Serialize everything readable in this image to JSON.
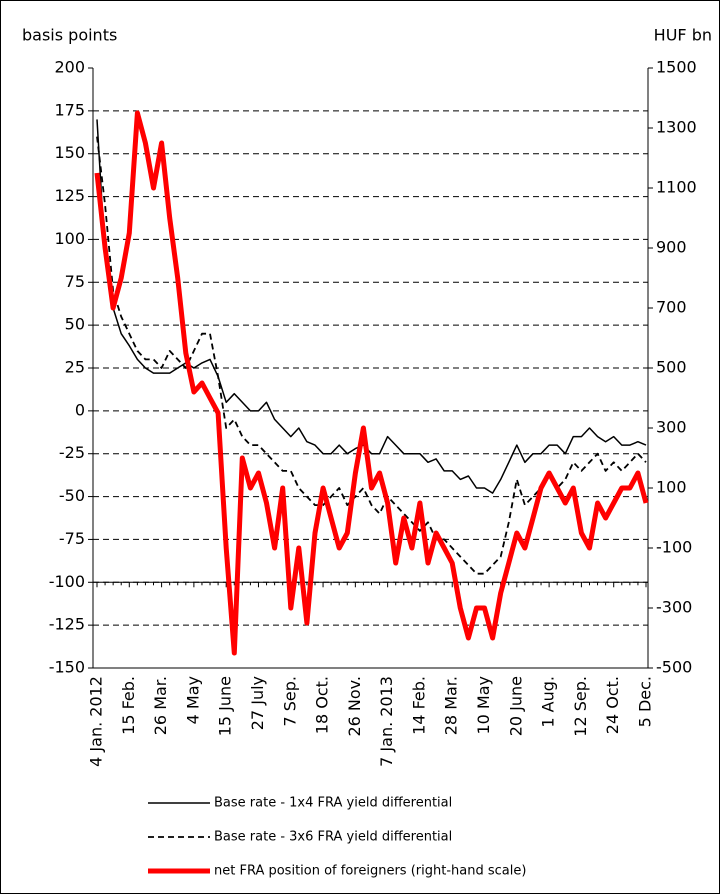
{
  "chart_data": {
    "type": "line",
    "ylabel": "basis points",
    "y2label": "HUF bn",
    "categories": [
      "4 Jan. 2012",
      null,
      null,
      null,
      "15 Feb.",
      null,
      null,
      null,
      "26 Mar.",
      null,
      null,
      null,
      "4 May",
      null,
      null,
      null,
      "15 June",
      null,
      null,
      null,
      "27 July",
      null,
      null,
      null,
      "7 Sep.",
      null,
      null,
      null,
      "18 Oct.",
      null,
      null,
      null,
      "26 Nov.",
      null,
      null,
      null,
      "7 Jan. 2013",
      null,
      null,
      null,
      "14 Feb.",
      null,
      null,
      null,
      "28 Mar.",
      null,
      null,
      null,
      "10 May",
      null,
      null,
      null,
      "20 June",
      null,
      null,
      null,
      "1 Aug.",
      null,
      null,
      null,
      "12 Sep.",
      null,
      null,
      null,
      "24 Oct.",
      null,
      null,
      null,
      "5 Dec."
    ],
    "ylim": [
      -150,
      200
    ],
    "yticks": [
      -150,
      -125,
      -100,
      -75,
      -50,
      -25,
      0,
      25,
      50,
      75,
      100,
      125,
      150,
      175,
      200
    ],
    "y2lim": [
      -500,
      1500
    ],
    "y2ticks": [
      -500,
      -300,
      -100,
      100,
      300,
      500,
      700,
      900,
      1100,
      1300,
      1500
    ],
    "grid": true,
    "x_axis_at": -100,
    "series": [
      {
        "name": "Base rate - 1x4 FRA yield differential",
        "color": "#000000",
        "linestyle": "solid",
        "values": [
          170,
          90,
          60,
          45,
          38,
          30,
          25,
          22,
          22,
          22,
          25,
          28,
          25,
          28,
          30,
          20,
          5,
          10,
          5,
          0,
          0,
          5,
          -5,
          -10,
          -15,
          -10,
          -18,
          -20,
          -25,
          -25,
          -20,
          -25,
          -22,
          -20,
          -25,
          -25,
          -15,
          -20,
          -25,
          -25,
          -25,
          -30,
          -28,
          -35,
          -35,
          -40,
          -38,
          -45,
          -45,
          -48,
          -40,
          -30,
          -20,
          -30,
          -25,
          -25,
          -20,
          -20,
          -25,
          -15,
          -15,
          -10,
          -15,
          -18,
          -15,
          -20,
          -20,
          -18,
          -20
        ]
      },
      {
        "name": "Base rate - 3x6 FRA yield differential",
        "color": "#000000",
        "linestyle": "dashed",
        "values": [
          160,
          120,
          70,
          55,
          45,
          35,
          30,
          30,
          25,
          35,
          30,
          25,
          35,
          45,
          45,
          20,
          -10,
          -5,
          -15,
          -20,
          -20,
          -25,
          -30,
          -35,
          -35,
          -45,
          -50,
          -55,
          -55,
          -50,
          -45,
          -55,
          -50,
          -45,
          -55,
          -60,
          -50,
          -55,
          -60,
          -65,
          -70,
          -65,
          -75,
          -75,
          -80,
          -85,
          -90,
          -95,
          -95,
          -90,
          -85,
          -65,
          -40,
          -55,
          -50,
          -45,
          -35,
          -45,
          -40,
          -30,
          -35,
          -30,
          -25,
          -35,
          -30,
          -35,
          -30,
          -25,
          -30
        ]
      },
      {
        "name": "net FRA position of foreigners (right-hand scale)",
        "color": "#ff0000",
        "linestyle": "thick",
        "axis": "y2",
        "values": [
          1150,
          900,
          700,
          800,
          950,
          1350,
          1250,
          1100,
          1250,
          1000,
          800,
          550,
          420,
          450,
          400,
          350,
          -100,
          -450,
          200,
          100,
          150,
          50,
          -100,
          100,
          -300,
          -100,
          -350,
          -50,
          100,
          0,
          -100,
          -50,
          150,
          300,
          100,
          150,
          50,
          -150,
          0,
          -100,
          50,
          -150,
          -50,
          -100,
          -150,
          -300,
          -400,
          -300,
          -300,
          -400,
          -250,
          -150,
          -50,
          -100,
          0,
          100,
          150,
          100,
          50,
          100,
          -50,
          -100,
          50,
          0,
          50,
          100,
          100,
          150,
          50
        ]
      }
    ]
  }
}
